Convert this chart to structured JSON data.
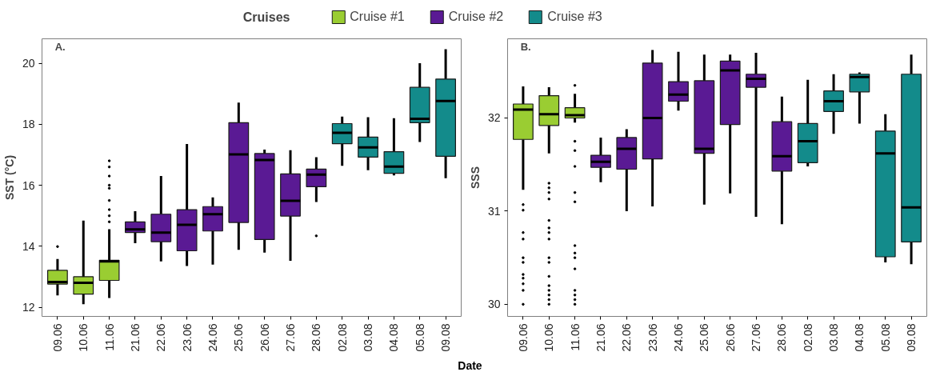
{
  "chart_data": [
    {
      "type": "box",
      "ylabel": "SST (°C)",
      "xlabel": "Date",
      "legend": "top",
      "legend_title": "Cruises",
      "grid": false,
      "annotations": [
        "A."
      ],
      "categories": [
        "09.06",
        "10.06",
        "11.06",
        "21.06",
        "22.06",
        "23.06",
        "24.06",
        "25.06",
        "26.06",
        "27.06",
        "28.06",
        "02.08",
        "03.08",
        "04.08",
        "05.08",
        "09.08"
      ],
      "ylim": [
        11.7,
        20.8
      ],
      "yticks": [
        12,
        14,
        16,
        18,
        20
      ],
      "series": [
        {
          "name": "Cruise #1",
          "color": "#9acd32",
          "boxes": [
            {
              "low": 12.39,
              "q1": 12.76,
              "median": 12.83,
              "q3": 13.21,
              "high": 13.58,
              "outliers": [
                13.99
              ]
            },
            {
              "low": 12.1,
              "q1": 12.43,
              "median": 12.8,
              "q3": 13.0,
              "high": 14.84
            },
            {
              "low": 12.3,
              "q1": 12.88,
              "median": 13.5,
              "q3": 13.54,
              "high": 14.56,
              "outliers": [
                14.8,
                15.0,
                15.2,
                15.5,
                15.9,
                16.0,
                16.3,
                16.6,
                16.8
              ]
            },
            null,
            null,
            null,
            null,
            null,
            null,
            null,
            null,
            null,
            null,
            null,
            null,
            null
          ]
        },
        {
          "name": "Cruise #2",
          "color": "#5a1a94",
          "boxes": [
            null,
            null,
            null,
            {
              "low": 14.1,
              "q1": 14.45,
              "median": 14.55,
              "q3": 14.8,
              "high": 15.15
            },
            {
              "low": 13.5,
              "q1": 14.15,
              "median": 14.45,
              "q3": 15.05,
              "high": 16.3
            },
            {
              "low": 13.35,
              "q1": 13.85,
              "median": 14.7,
              "q3": 15.2,
              "high": 17.35
            },
            {
              "low": 13.4,
              "q1": 14.5,
              "median": 15.05,
              "q3": 15.3,
              "high": 15.6
            },
            {
              "low": 13.88,
              "q1": 14.78,
              "median": 17.01,
              "q3": 18.05,
              "high": 18.71
            },
            {
              "low": 13.79,
              "q1": 14.22,
              "median": 16.83,
              "q3": 17.04,
              "high": 17.17
            },
            {
              "low": 13.52,
              "q1": 14.99,
              "median": 15.49,
              "q3": 16.37,
              "high": 17.15
            },
            {
              "low": 15.45,
              "q1": 15.95,
              "median": 16.35,
              "q3": 16.53,
              "high": 16.92,
              "outliers": [
                14.34
              ]
            },
            null,
            null,
            null,
            null,
            null
          ]
        },
        {
          "name": "Cruise #3",
          "color": "#138b8b",
          "boxes": [
            null,
            null,
            null,
            null,
            null,
            null,
            null,
            null,
            null,
            null,
            null,
            {
              "low": 16.64,
              "q1": 17.36,
              "median": 17.72,
              "q3": 18.02,
              "high": 18.25
            },
            {
              "low": 16.49,
              "q1": 16.92,
              "median": 17.24,
              "q3": 17.58,
              "high": 18.23
            },
            {
              "low": 16.32,
              "q1": 16.39,
              "median": 16.61,
              "q3": 17.1,
              "high": 18.2
            },
            {
              "low": 17.42,
              "q1": 18.05,
              "median": 18.18,
              "q3": 19.21,
              "high": 20.0
            },
            {
              "low": 16.23,
              "q1": 16.95,
              "median": 18.76,
              "q3": 19.48,
              "high": 20.46
            }
          ]
        }
      ]
    },
    {
      "type": "box",
      "ylabel": "SSS",
      "grid": false,
      "annotations": [
        "B."
      ],
      "categories": [
        "09.06",
        "10.06",
        "11.06",
        "21.06",
        "22.06",
        "23.06",
        "24.06",
        "25.06",
        "26.06",
        "27.06",
        "28.06",
        "02.08",
        "03.08",
        "04.08",
        "05.08",
        "09.08"
      ],
      "ylim": [
        29.87,
        32.85
      ],
      "yticks": [
        30,
        31,
        32
      ],
      "series": [
        {
          "color": "#9acd32",
          "boxes": [
            {
              "low": 31.23,
              "q1": 31.77,
              "median": 32.09,
              "q3": 32.15,
              "high": 32.34,
              "outliers": [
                31.07,
                31.01,
                30.77,
                30.7,
                30.5,
                30.45,
                30.32,
                30.28,
                30.22,
                30.15,
                30.0
              ]
            },
            {
              "low": 31.62,
              "q1": 31.92,
              "median": 32.04,
              "q3": 32.24,
              "high": 32.33,
              "outliers": [
                31.3,
                31.25,
                31.2,
                31.13,
                30.9,
                30.82,
                30.77,
                30.7,
                30.5,
                30.45,
                30.3,
                30.2,
                30.15,
                30.1,
                30.05,
                30.0
              ]
            },
            {
              "low": 31.95,
              "q1": 32.0,
              "median": 32.03,
              "q3": 32.11,
              "high": 32.26,
              "outliers": [
                32.35,
                31.75,
                31.65,
                31.48,
                31.2,
                31.1,
                30.63,
                30.55,
                30.5,
                30.38,
                30.15,
                30.1,
                30.05,
                30.0
              ]
            },
            null,
            null,
            null,
            null,
            null,
            null,
            null,
            null,
            null,
            null,
            null,
            null,
            null
          ]
        },
        {
          "color": "#5a1a94",
          "boxes": [
            null,
            null,
            null,
            {
              "low": 31.31,
              "q1": 31.47,
              "median": 31.53,
              "q3": 31.6,
              "high": 31.79
            },
            {
              "low": 31.0,
              "q1": 31.45,
              "median": 31.67,
              "q3": 31.79,
              "high": 31.88
            },
            {
              "low": 31.05,
              "q1": 31.56,
              "median": 32.0,
              "q3": 32.59,
              "high": 32.73
            },
            {
              "low": 32.08,
              "q1": 32.18,
              "median": 32.25,
              "q3": 32.39,
              "high": 32.71
            },
            {
              "low": 31.07,
              "q1": 31.62,
              "median": 31.67,
              "q3": 32.4,
              "high": 32.68
            },
            {
              "low": 31.19,
              "q1": 31.93,
              "median": 32.51,
              "q3": 32.61,
              "high": 32.68
            },
            {
              "low": 30.94,
              "q1": 32.33,
              "median": 32.42,
              "q3": 32.47,
              "high": 32.7
            },
            {
              "low": 30.86,
              "q1": 31.43,
              "median": 31.59,
              "q3": 31.96,
              "high": 32.23
            },
            null,
            null,
            null,
            null,
            null
          ]
        },
        {
          "color": "#138b8b",
          "boxes": [
            null,
            null,
            null,
            null,
            null,
            null,
            null,
            null,
            null,
            null,
            null,
            {
              "low": 31.48,
              "q1": 31.52,
              "median": 31.75,
              "q3": 31.94,
              "high": 32.41
            },
            {
              "low": 31.83,
              "q1": 32.07,
              "median": 32.18,
              "q3": 32.29,
              "high": 32.47
            },
            {
              "low": 31.94,
              "q1": 32.28,
              "median": 32.44,
              "q3": 32.47,
              "high": 32.49
            },
            {
              "low": 30.45,
              "q1": 30.51,
              "median": 31.62,
              "q3": 31.86,
              "high": 32.04
            },
            {
              "low": 30.43,
              "q1": 30.67,
              "median": 31.04,
              "q3": 32.47,
              "high": 32.68
            }
          ]
        }
      ]
    }
  ]
}
